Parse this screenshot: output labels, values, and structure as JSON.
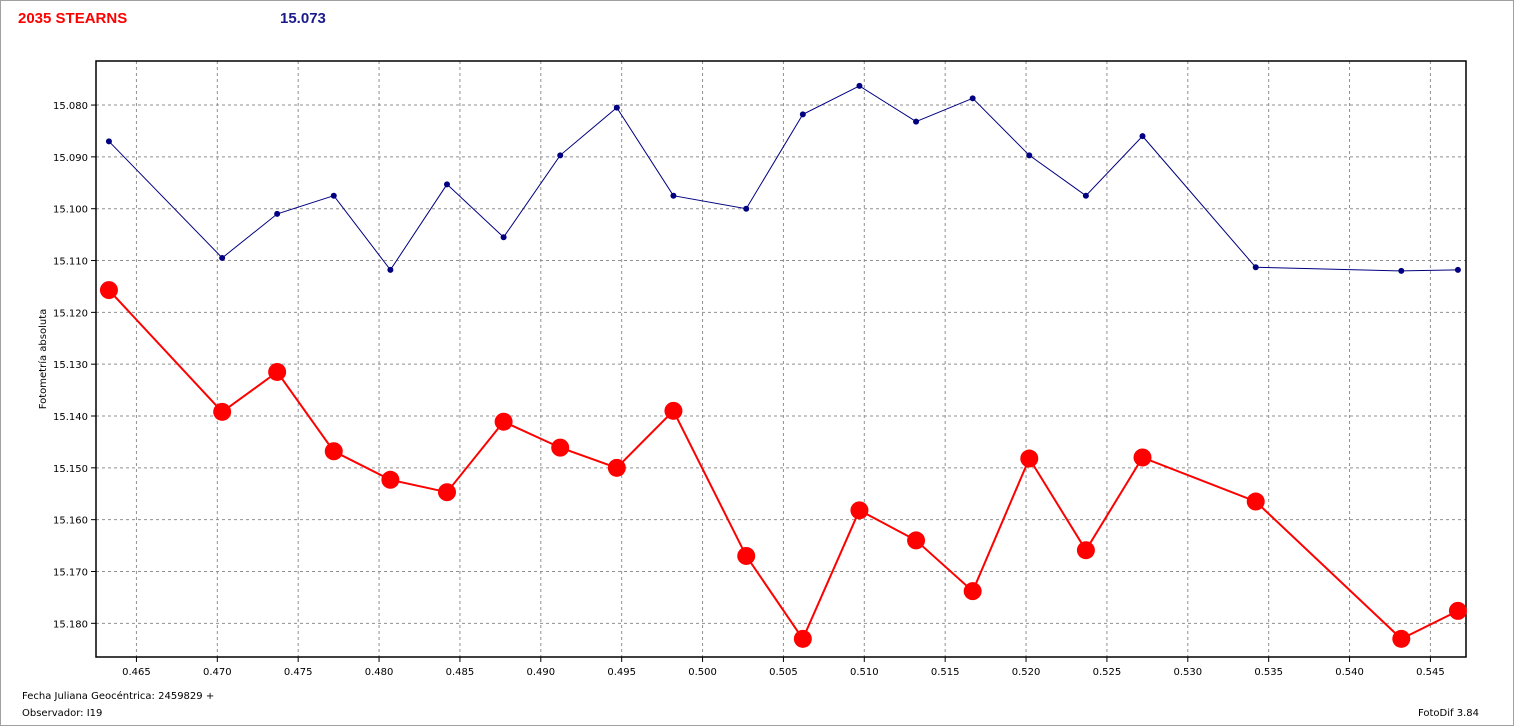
{
  "header": {
    "object": "2035 STEARNS",
    "magnitude": "15.073"
  },
  "footer": {
    "jd_label": "Fecha Juliana Geocéntrica: 2459829 +",
    "observer_label": "Observador: I19",
    "software": "FotoDif 3.84"
  },
  "chart_data": {
    "type": "line",
    "ylabel": "Fotometría absoluta",
    "xlabel": "",
    "xlim": [
      0.4625,
      0.5472
    ],
    "ylim": [
      15.0715,
      15.1865
    ],
    "y_inverted": true,
    "grid": true,
    "x_ticks": [
      "0.465",
      "0.470",
      "0.475",
      "0.480",
      "0.485",
      "0.490",
      "0.495",
      "0.500",
      "0.505",
      "0.510",
      "0.515",
      "0.520",
      "0.525",
      "0.530",
      "0.535",
      "0.540",
      "0.545"
    ],
    "y_ticks": [
      "15.080",
      "15.090",
      "15.100",
      "15.110",
      "15.120",
      "15.130",
      "15.140",
      "15.150",
      "15.160",
      "15.170",
      "15.180"
    ],
    "series": [
      {
        "color": "#000080",
        "marker": "small",
        "x": [
          0.4633,
          0.4703,
          0.4737,
          0.4772,
          0.4807,
          0.4842,
          0.4877,
          0.4912,
          0.4947,
          0.4982,
          0.5027,
          0.5062,
          0.5097,
          0.5132,
          0.5167,
          0.5202,
          0.5237,
          0.5272,
          0.5342,
          0.5432,
          0.5467
        ],
        "y": [
          15.087,
          15.1095,
          15.101,
          15.0975,
          15.1118,
          15.0953,
          15.1055,
          15.0897,
          15.0805,
          15.0975,
          15.1,
          15.0818,
          15.0763,
          15.0832,
          15.0787,
          15.0897,
          15.0975,
          15.086,
          15.1113,
          15.112,
          15.1118
        ]
      },
      {
        "color": "#ff0000",
        "marker": "large",
        "x": [
          0.4633,
          0.4703,
          0.4737,
          0.4772,
          0.4807,
          0.4842,
          0.4877,
          0.4912,
          0.4947,
          0.4982,
          0.5027,
          0.5062,
          0.5097,
          0.5132,
          0.5167,
          0.5202,
          0.5237,
          0.5272,
          0.5342,
          0.5432,
          0.5467
        ],
        "y": [
          15.1157,
          15.1392,
          15.1315,
          15.1468,
          15.1523,
          15.1547,
          15.1411,
          15.1461,
          15.15,
          15.139,
          15.167,
          15.183,
          15.1582,
          15.164,
          15.1738,
          15.1482,
          15.1659,
          15.148,
          15.1565,
          15.183,
          15.1776
        ]
      }
    ]
  }
}
